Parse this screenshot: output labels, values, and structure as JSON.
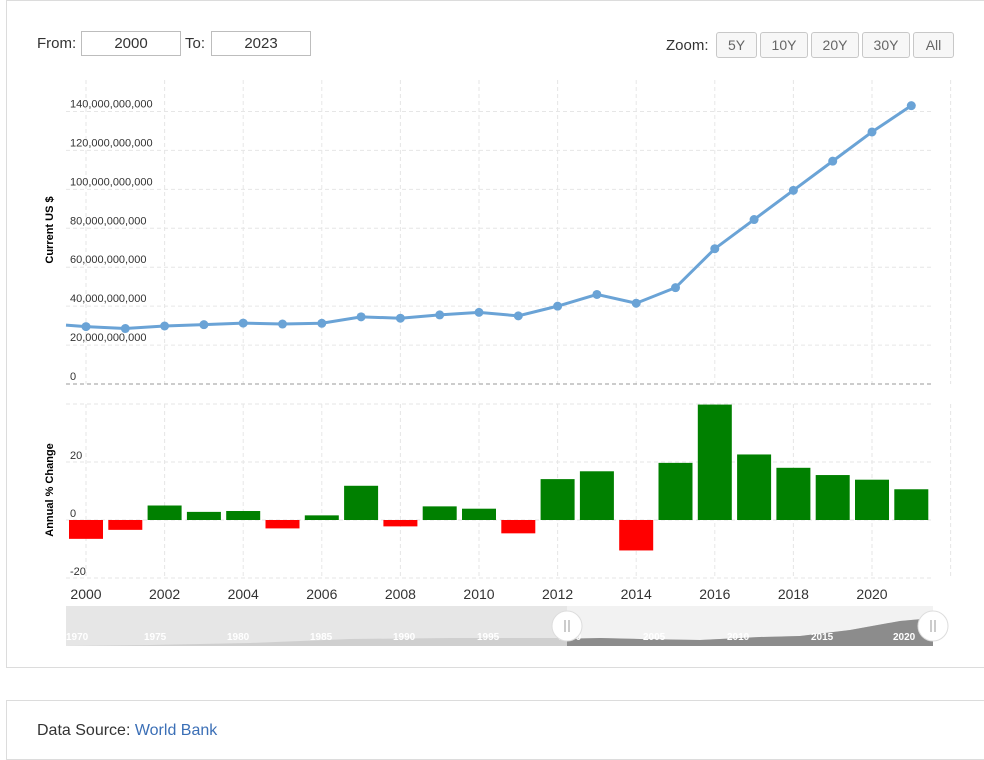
{
  "controls": {
    "from_label": "From:",
    "from_value": "2000",
    "to_label": "To:",
    "to_value": "2023",
    "zoom_label": "Zoom:",
    "zoom_buttons": [
      "5Y",
      "10Y",
      "20Y",
      "30Y",
      "All"
    ]
  },
  "footer": {
    "source_label": "Data Source:",
    "source_link": "World Bank"
  },
  "navigator": {
    "labels": [
      "1970",
      "1975",
      "1980",
      "1985",
      "1990",
      "1995",
      "2000",
      "2005",
      "2010",
      "2015",
      "2020"
    ]
  },
  "chart_data": [
    {
      "type": "line",
      "ylabel": "Current US $",
      "ylim": [
        0,
        140000000000
      ],
      "yticks": [
        "0",
        "20,000,000,000",
        "40,000,000,000",
        "60,000,000,000",
        "80,000,000,000",
        "100,000,000,000",
        "120,000,000,000",
        "140,000,000,000"
      ],
      "x": [
        2000,
        2001,
        2002,
        2003,
        2004,
        2005,
        2006,
        2007,
        2008,
        2009,
        2010,
        2011,
        2012,
        2013,
        2014,
        2015,
        2016,
        2017,
        2018,
        2019,
        2020,
        2021
      ],
      "values": [
        29500000000,
        28500000000,
        29800000000,
        30500000000,
        31300000000,
        30800000000,
        31200000000,
        34500000000,
        33800000000,
        35500000000,
        36800000000,
        35000000000,
        40000000000,
        46000000000,
        41500000000,
        49500000000,
        69500000000,
        84500000000,
        99500000000,
        114500000000,
        129500000000,
        143000000000
      ],
      "color": "#6aa3d6",
      "grid": true
    },
    {
      "type": "bar",
      "ylabel": "Annual % Change",
      "yticks": [
        "-20",
        "0",
        "20"
      ],
      "ylim": [
        -20,
        40
      ],
      "x": [
        2000,
        2001,
        2002,
        2003,
        2004,
        2005,
        2006,
        2007,
        2008,
        2009,
        2010,
        2011,
        2012,
        2013,
        2014,
        2015,
        2016,
        2017,
        2018,
        2019,
        2020,
        2021
      ],
      "values": [
        -6.5,
        -3.4,
        5.0,
        2.8,
        3.1,
        -2.9,
        1.6,
        11.8,
        -2.2,
        4.7,
        3.9,
        -4.6,
        14.1,
        16.8,
        -10.5,
        19.7,
        39.8,
        22.6,
        18.0,
        15.5,
        13.9,
        10.6
      ],
      "positive_color": "#008000",
      "negative_color": "#ff0000",
      "xticks": [
        "2000",
        "2002",
        "2004",
        "2006",
        "2008",
        "2010",
        "2012",
        "2014",
        "2016",
        "2018",
        "2020"
      ]
    }
  ]
}
